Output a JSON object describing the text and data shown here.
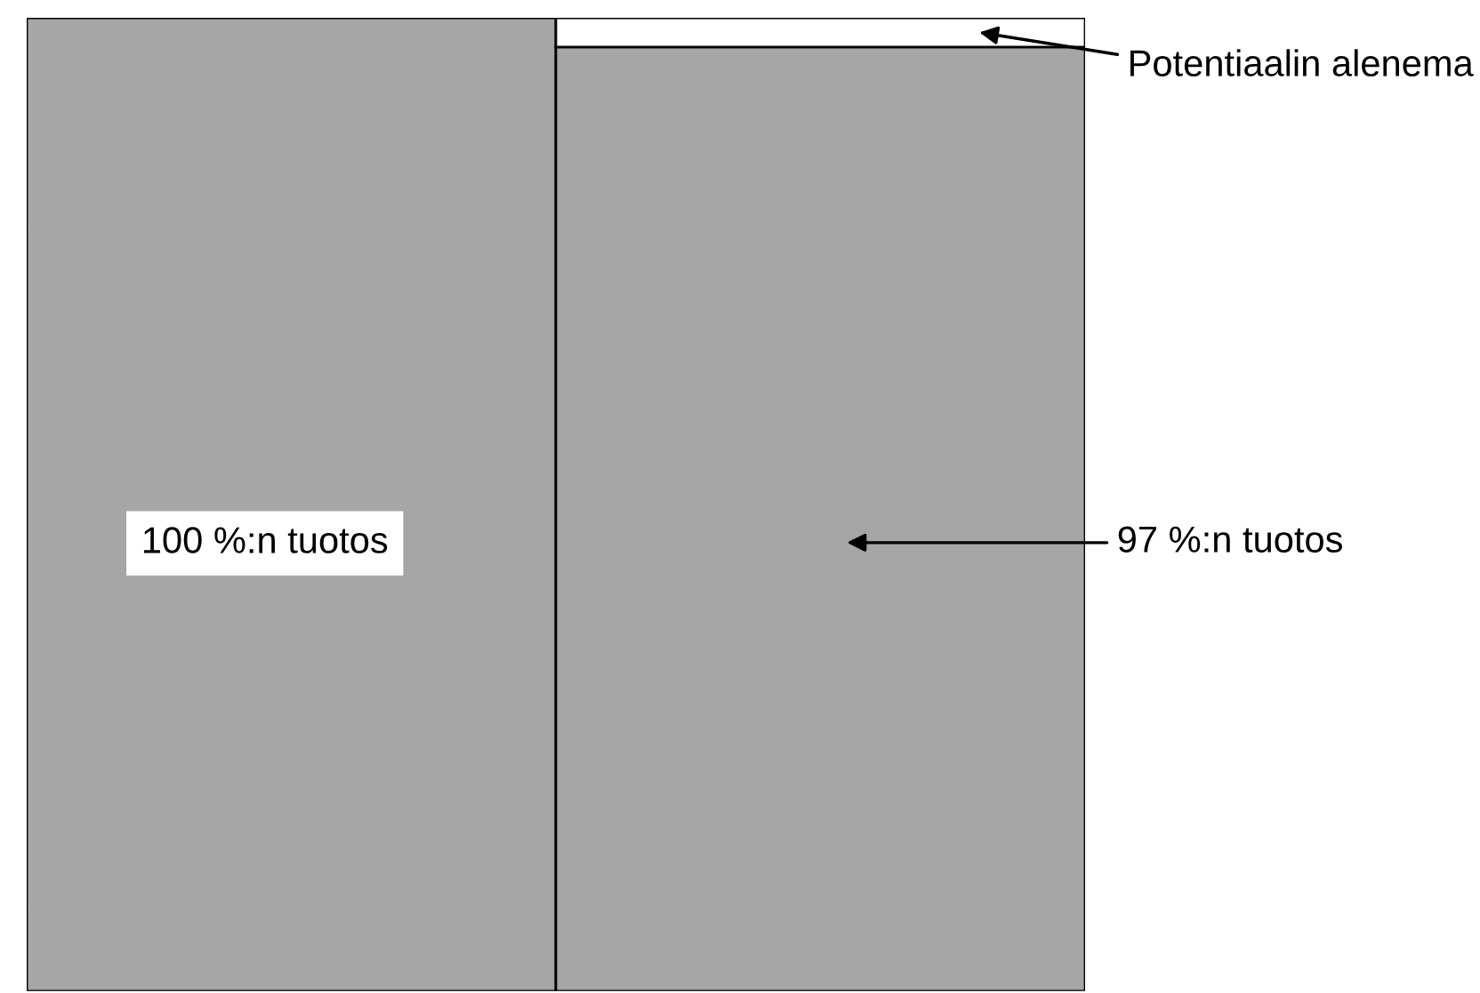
{
  "chart_data": {
    "type": "bar",
    "stacked": true,
    "categories": [
      null,
      null
    ],
    "ylim": [
      0,
      100
    ],
    "series": [
      {
        "color": "#a6a6a6",
        "values": [
          100,
          97
        ],
        "value_labels": [
          "100 %:n tuotos",
          "97 %:n tuotos"
        ]
      },
      {
        "color": "#ffffff",
        "values": [
          0,
          3
        ],
        "value_labels": [
          null,
          "Potentiaalin alenema"
        ]
      }
    ]
  }
}
